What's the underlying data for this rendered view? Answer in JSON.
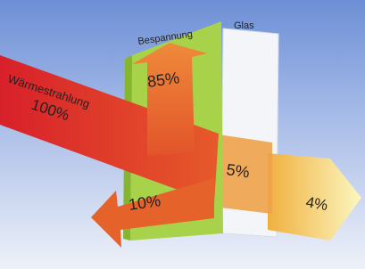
{
  "diagram": {
    "source": {
      "label": "Wärmestrahlung",
      "value": "100%"
    },
    "film": {
      "label": "Bespannung",
      "reflected": "85%",
      "returned": "10%"
    },
    "glass": {
      "label": "Glas",
      "inside": "5%",
      "through": "4%"
    }
  }
}
